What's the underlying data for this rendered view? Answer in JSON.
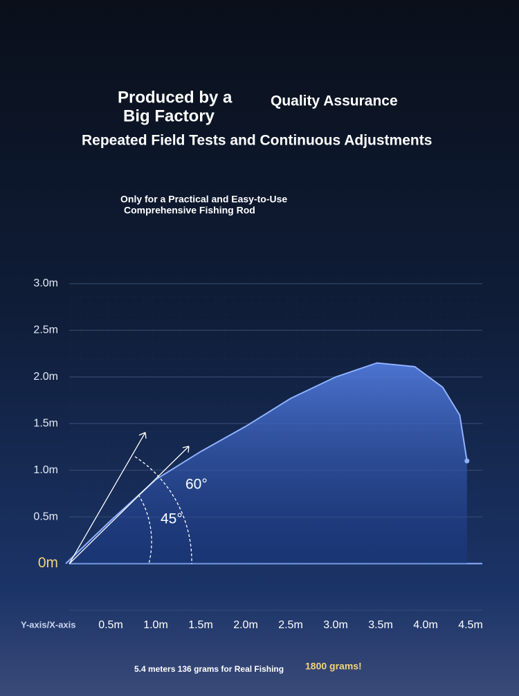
{
  "header": {
    "title_left": [
      "Produced by a",
      "Big Factory"
    ],
    "title_right": "Quality Assurance",
    "subtitle": "Repeated Field Tests and Continuous Adjustments",
    "tagline": [
      "Only for a Practical and Easy-to-Use",
      "Comprehensive Fishing Rod"
    ]
  },
  "chart_data": {
    "type": "line",
    "axis_label": "Y-axis/X-axis",
    "x": [
      0,
      0.5,
      1.0,
      1.5,
      2.0,
      2.5,
      3.0,
      3.46,
      3.88,
      4.19,
      4.38,
      4.46
    ],
    "series": [
      {
        "color": "#8fb2ff",
        "values": [
          0,
          0.46,
          0.9,
          1.2,
          1.47,
          1.77,
          2.0,
          2.15,
          2.11,
          1.89,
          1.59,
          1.1
        ]
      }
    ],
    "xlim": [
      0,
      4.6
    ],
    "xticks": [
      {
        "value": 0.5,
        "label": "0.5m"
      },
      {
        "value": 1.0,
        "label": "1.0m"
      },
      {
        "value": 1.5,
        "label": "1.5m"
      },
      {
        "value": 2.0,
        "label": "2.0m"
      },
      {
        "value": 2.5,
        "label": "2.5m"
      },
      {
        "value": 3.0,
        "label": "3.0m"
      },
      {
        "value": 3.5,
        "label": "3.5m"
      },
      {
        "value": 4.0,
        "label": "4.0m"
      },
      {
        "value": 4.5,
        "label": "4.5m"
      }
    ],
    "ylim": [
      -0.5,
      3.0
    ],
    "yticks": [
      {
        "value": 0,
        "label": "0m"
      },
      {
        "value": 0.5,
        "label": "0.5m"
      },
      {
        "value": 1.0,
        "label": "1.0m"
      },
      {
        "value": 1.5,
        "label": "1.5m"
      },
      {
        "value": 2.0,
        "label": "2.0m"
      },
      {
        "value": 2.5,
        "label": "2.5m"
      },
      {
        "value": 3.0,
        "label": "3.0m"
      }
    ],
    "grid": true,
    "annotations": [
      "60°",
      "45°"
    ]
  },
  "footer": {
    "note": "5.4 meters 136 grams for Real Fishing",
    "highlight": "1800 grams!"
  }
}
